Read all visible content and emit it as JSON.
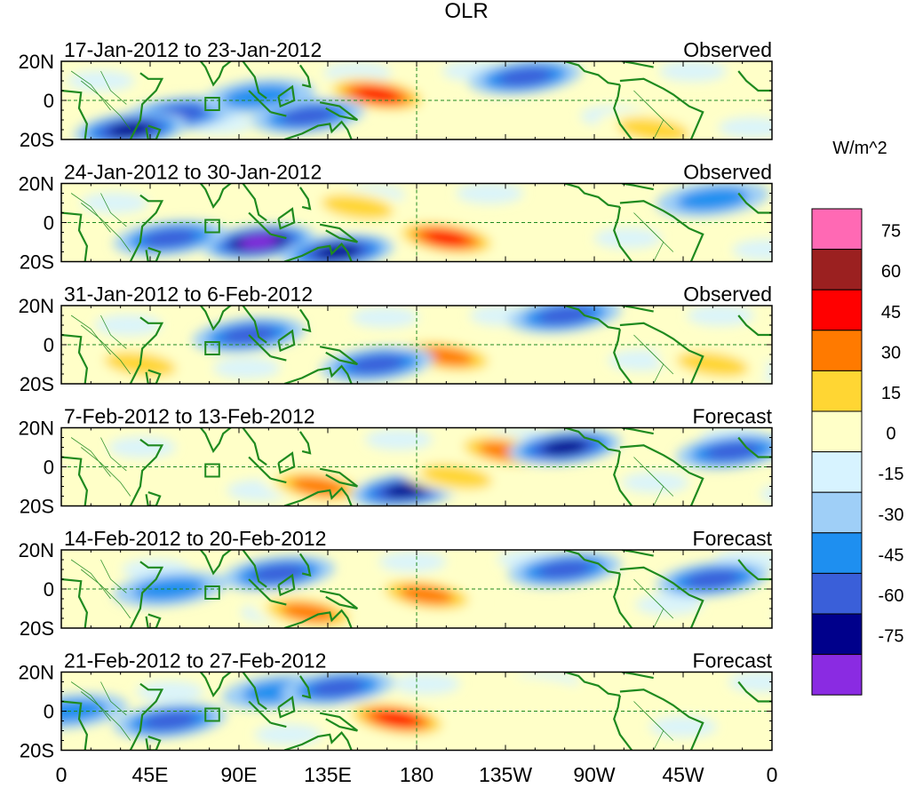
{
  "chart_data": {
    "type": "heatmap",
    "title": "OLR",
    "units": "W/m^2",
    "x_ticks": [
      "0",
      "45E",
      "90E",
      "135E",
      "180",
      "135W",
      "90W",
      "45W",
      "0"
    ],
    "y_ticks": [
      "20N",
      "0",
      "20S"
    ],
    "xlim": [
      0,
      360
    ],
    "ylim": [
      -20,
      20
    ],
    "reference_lines": {
      "equator_lat": 0,
      "dateline_lon": 180
    },
    "colorbar": {
      "levels": [
        "75",
        "60",
        "45",
        "30",
        "15",
        "0",
        "-15",
        "-30",
        "-45",
        "-60",
        "-75"
      ],
      "colors": [
        "#8a2be2",
        "#00008b",
        "#3a5fd9",
        "#1e8ff0",
        "#9fcff7",
        "#d7f3ff",
        "#ffffc8",
        "#ffd633",
        "#ff7a00",
        "#ff0000",
        "#9b2020",
        "#ff69b4"
      ]
    },
    "panels": [
      {
        "date_range": "17-Jan-2012 to 23-Jan-2012",
        "label": "Observed",
        "features": [
          {
            "lon": 160,
            "lat": 3,
            "value": 55
          },
          {
            "lon": 125,
            "lat": -8,
            "value": -45
          },
          {
            "lon": 60,
            "lat": -7,
            "value": -50
          },
          {
            "lon": 35,
            "lat": -15,
            "value": -60
          },
          {
            "lon": 235,
            "lat": 12,
            "value": -40
          },
          {
            "lon": 100,
            "lat": 2,
            "value": -30
          },
          {
            "lon": 300,
            "lat": -15,
            "value": 30
          }
        ]
      },
      {
        "date_range": "24-Jan-2012 to 30-Jan-2012",
        "label": "Observed",
        "features": [
          {
            "lon": 195,
            "lat": -8,
            "value": 55
          },
          {
            "lon": 100,
            "lat": -10,
            "value": -70
          },
          {
            "lon": 55,
            "lat": -8,
            "value": -45
          },
          {
            "lon": 140,
            "lat": -15,
            "value": -60
          },
          {
            "lon": 330,
            "lat": 12,
            "value": -35
          },
          {
            "lon": 150,
            "lat": 8,
            "value": 25
          }
        ]
      },
      {
        "date_range": "31-Jan-2012 to 6-Feb-2012",
        "label": "Observed",
        "features": [
          {
            "lon": 195,
            "lat": -6,
            "value": 40
          },
          {
            "lon": 160,
            "lat": -10,
            "value": -50
          },
          {
            "lon": 95,
            "lat": 5,
            "value": -40
          },
          {
            "lon": 40,
            "lat": -10,
            "value": 30
          },
          {
            "lon": 330,
            "lat": -10,
            "value": 35
          },
          {
            "lon": 255,
            "lat": 15,
            "value": -45
          }
        ]
      },
      {
        "date_range": "7-Feb-2012 to 13-Feb-2012",
        "label": "Forecast",
        "features": [
          {
            "lon": 225,
            "lat": 8,
            "value": 40
          },
          {
            "lon": 130,
            "lat": -10,
            "value": 45
          },
          {
            "lon": 175,
            "lat": -12,
            "value": -65
          },
          {
            "lon": 255,
            "lat": 10,
            "value": -60
          },
          {
            "lon": 340,
            "lat": 8,
            "value": -45
          },
          {
            "lon": 200,
            "lat": -5,
            "value": 35
          }
        ]
      },
      {
        "date_range": "14-Feb-2012 to 20-Feb-2012",
        "label": "Forecast",
        "features": [
          {
            "lon": 125,
            "lat": -12,
            "value": 50
          },
          {
            "lon": 185,
            "lat": -3,
            "value": 40
          },
          {
            "lon": 110,
            "lat": 8,
            "value": -40
          },
          {
            "lon": 255,
            "lat": 10,
            "value": -45
          },
          {
            "lon": 330,
            "lat": 5,
            "value": -40
          },
          {
            "lon": 55,
            "lat": 0,
            "value": -35
          }
        ]
      },
      {
        "date_range": "21-Feb-2012 to 27-Feb-2012",
        "label": "Forecast",
        "features": [
          {
            "lon": 170,
            "lat": -4,
            "value": 55
          },
          {
            "lon": 55,
            "lat": -5,
            "value": -40
          },
          {
            "lon": 110,
            "lat": 10,
            "value": -35
          },
          {
            "lon": 140,
            "lat": 12,
            "value": -40
          },
          {
            "lon": 5,
            "lat": 0,
            "value": -35
          },
          {
            "lon": 245,
            "lat": 8,
            "value": 20
          }
        ]
      }
    ]
  }
}
